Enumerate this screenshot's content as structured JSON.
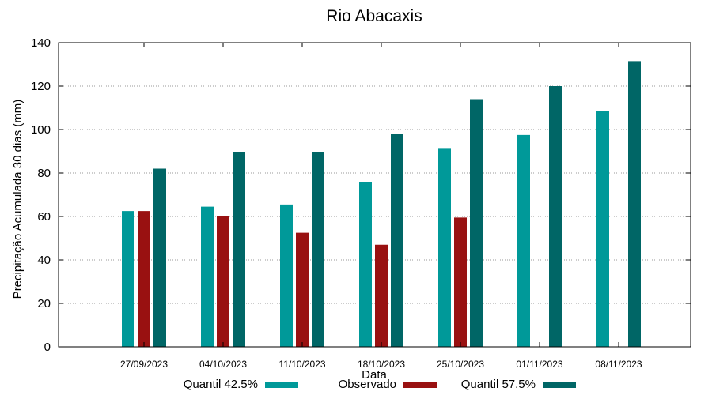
{
  "chart_data": {
    "type": "bar",
    "title": "Rio Abacaxis",
    "xlabel": "Data",
    "ylabel": "Precipitação Acumulada 30 dias (mm)",
    "ylim": [
      0,
      140
    ],
    "yticks": [
      "0",
      "20",
      "40",
      "60",
      "80",
      "100",
      "120",
      "140"
    ],
    "grid": true,
    "categories": [
      "27/09/2023",
      "04/10/2023",
      "11/10/2023",
      "18/10/2023",
      "25/10/2023",
      "01/11/2023",
      "08/11/2023"
    ],
    "series": [
      {
        "name": "Quantil 42.5%",
        "color": "#009999",
        "values": [
          62.5,
          64.5,
          65.5,
          76,
          91.5,
          97.5,
          108.5
        ]
      },
      {
        "name": "Observado",
        "color": "#991111",
        "values": [
          62.5,
          60,
          52.5,
          47,
          59.5,
          null,
          null
        ]
      },
      {
        "name": "Quantil 57.5%",
        "color": "#006666",
        "values": [
          82,
          89.5,
          89.5,
          98,
          114,
          120,
          131.5
        ]
      }
    ],
    "legend_position": "bottom"
  }
}
